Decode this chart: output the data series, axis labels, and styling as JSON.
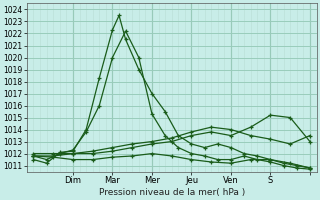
{
  "xlabel": "Pression niveau de la mer( hPa )",
  "ylim": [
    1010.5,
    1024.5
  ],
  "xlim": [
    -1,
    43
  ],
  "yticks": [
    1011,
    1012,
    1013,
    1014,
    1015,
    1016,
    1017,
    1018,
    1019,
    1020,
    1021,
    1022,
    1023,
    1024
  ],
  "xtick_positions": [
    6,
    12,
    18,
    24,
    30,
    36,
    42
  ],
  "xtick_labels": [
    "Dim",
    "Mar",
    "Mer",
    "Jeu",
    "Ven",
    "S",
    ""
  ],
  "bg_color": "#c8ede8",
  "grid_major_color": "#99ccbb",
  "grid_minor_color": "#b8ddd5",
  "line_color": "#1a5c1a",
  "lines": [
    {
      "x": [
        0,
        2,
        4,
        6,
        8,
        10,
        12,
        13,
        14,
        16,
        18,
        20,
        22,
        24,
        26,
        28,
        30,
        32,
        34,
        36,
        38,
        40,
        42
      ],
      "y": [
        1011.5,
        1011.2,
        1012.1,
        1012.2,
        1014.0,
        1018.3,
        1022.3,
        1023.5,
        1021.5,
        1019.0,
        1017.0,
        1015.5,
        1013.5,
        1012.8,
        1012.5,
        1012.8,
        1012.5,
        1012.0,
        1011.8,
        1011.5,
        1011.2,
        1011.0,
        1010.8
      ]
    },
    {
      "x": [
        0,
        2,
        4,
        6,
        8,
        10,
        12,
        14,
        16,
        18,
        20,
        22,
        24,
        26,
        28,
        30,
        32,
        34,
        36,
        38,
        40,
        42
      ],
      "y": [
        1011.8,
        1011.5,
        1012.0,
        1012.3,
        1013.8,
        1016.0,
        1020.0,
        1022.2,
        1020.0,
        1015.3,
        1013.5,
        1012.5,
        1012.0,
        1011.8,
        1011.5,
        1011.5,
        1011.8,
        1011.5,
        1011.3,
        1011.0,
        1010.8,
        1010.7
      ]
    },
    {
      "x": [
        0,
        3,
        6,
        9,
        12,
        15,
        18,
        21,
        24,
        27,
        30,
        33,
        36,
        39,
        42
      ],
      "y": [
        1012.0,
        1012.0,
        1012.0,
        1012.2,
        1012.5,
        1012.8,
        1013.0,
        1013.3,
        1013.8,
        1014.2,
        1014.0,
        1013.5,
        1013.2,
        1012.8,
        1013.5
      ]
    },
    {
      "x": [
        0,
        3,
        6,
        9,
        12,
        15,
        18,
        21,
        24,
        27,
        30,
        33,
        36,
        39,
        42
      ],
      "y": [
        1011.8,
        1011.7,
        1011.5,
        1011.5,
        1011.7,
        1011.8,
        1012.0,
        1011.8,
        1011.5,
        1011.3,
        1011.2,
        1011.5,
        1011.5,
        1011.2,
        1010.8
      ]
    },
    {
      "x": [
        0,
        3,
        6,
        9,
        12,
        15,
        18,
        21,
        24,
        27,
        30,
        33,
        36,
        39,
        42
      ],
      "y": [
        1011.8,
        1011.8,
        1012.0,
        1012.0,
        1012.2,
        1012.5,
        1012.8,
        1013.0,
        1013.5,
        1013.8,
        1013.5,
        1014.2,
        1015.2,
        1015.0,
        1013.0
      ]
    }
  ]
}
